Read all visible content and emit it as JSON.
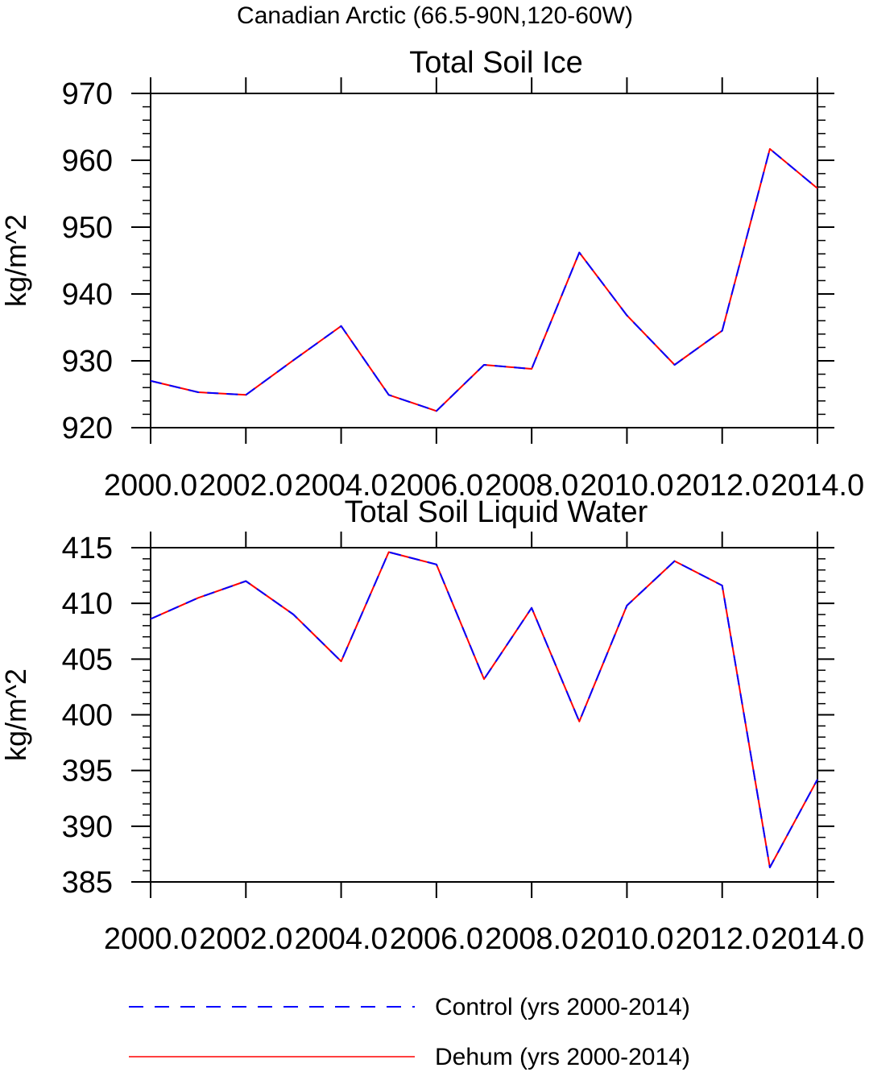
{
  "figure": {
    "suptitle": "Canadian Arctic (66.5-90N,120-60W)"
  },
  "chart_data": [
    {
      "type": "line",
      "title": "Total Soil Ice",
      "xlabel": "",
      "ylabel": "kg/m^2",
      "xlim": [
        2000,
        2014
      ],
      "ylim": [
        920,
        970
      ],
      "x_ticks": [
        2000,
        2002,
        2004,
        2006,
        2008,
        2010,
        2012,
        2014
      ],
      "x_tick_labels": [
        "2000.0",
        "2002.0",
        "2004.0",
        "2006.0",
        "2008.0",
        "2010.0",
        "2012.0",
        "2014.0"
      ],
      "y_ticks": [
        920,
        930,
        940,
        950,
        960,
        970
      ],
      "y_tick_labels": [
        "920",
        "930",
        "940",
        "950",
        "960",
        "970"
      ],
      "x": [
        2000,
        2001,
        2002,
        2003,
        2004,
        2005,
        2006,
        2007,
        2008,
        2009,
        2010,
        2011,
        2012,
        2013,
        2014
      ],
      "series": [
        {
          "name": "Control (yrs 2000-2014)",
          "color": "#0000ff",
          "style": "dashed",
          "values": [
            927.0,
            925.3,
            924.9,
            930.1,
            935.2,
            924.9,
            922.5,
            929.4,
            928.8,
            946.2,
            936.8,
            929.4,
            934.5,
            961.7,
            955.8
          ]
        },
        {
          "name": "Dehum (yrs 2000-2014)",
          "color": "#ff0000",
          "style": "solid",
          "values": [
            927.0,
            925.3,
            924.9,
            930.1,
            935.2,
            924.9,
            922.5,
            929.4,
            928.8,
            946.2,
            936.8,
            929.4,
            934.5,
            961.7,
            955.8
          ]
        }
      ],
      "grid": false
    },
    {
      "type": "line",
      "title": "Total Soil Liquid Water",
      "xlabel": "",
      "ylabel": "kg/m^2",
      "xlim": [
        2000,
        2014
      ],
      "ylim": [
        385,
        415
      ],
      "x_ticks": [
        2000,
        2002,
        2004,
        2006,
        2008,
        2010,
        2012,
        2014
      ],
      "x_tick_labels": [
        "2000.0",
        "2002.0",
        "2004.0",
        "2006.0",
        "2008.0",
        "2010.0",
        "2012.0",
        "2014.0"
      ],
      "y_ticks": [
        385,
        390,
        395,
        400,
        405,
        410,
        415
      ],
      "y_tick_labels": [
        "385",
        "390",
        "395",
        "400",
        "405",
        "410",
        "415"
      ],
      "x": [
        2000,
        2001,
        2002,
        2003,
        2004,
        2005,
        2006,
        2007,
        2008,
        2009,
        2010,
        2011,
        2012,
        2013,
        2014
      ],
      "series": [
        {
          "name": "Control (yrs 2000-2014)",
          "color": "#0000ff",
          "style": "dashed",
          "values": [
            408.6,
            410.5,
            412.0,
            409.0,
            404.8,
            414.6,
            413.5,
            403.2,
            409.6,
            399.4,
            409.8,
            413.8,
            411.6,
            386.3,
            394.2
          ]
        },
        {
          "name": "Dehum (yrs 2000-2014)",
          "color": "#ff0000",
          "style": "solid",
          "values": [
            408.6,
            410.5,
            412.0,
            409.0,
            404.8,
            414.6,
            413.5,
            403.2,
            409.6,
            399.4,
            409.8,
            413.8,
            411.6,
            386.3,
            394.2
          ]
        }
      ],
      "grid": false
    }
  ],
  "legend": {
    "placement": "bottom",
    "items": [
      {
        "label": "Control (yrs 2000-2014)",
        "color": "#0000ff",
        "style": "dashed"
      },
      {
        "label": "Dehum (yrs 2000-2014)",
        "color": "#ff0000",
        "style": "solid"
      }
    ]
  }
}
